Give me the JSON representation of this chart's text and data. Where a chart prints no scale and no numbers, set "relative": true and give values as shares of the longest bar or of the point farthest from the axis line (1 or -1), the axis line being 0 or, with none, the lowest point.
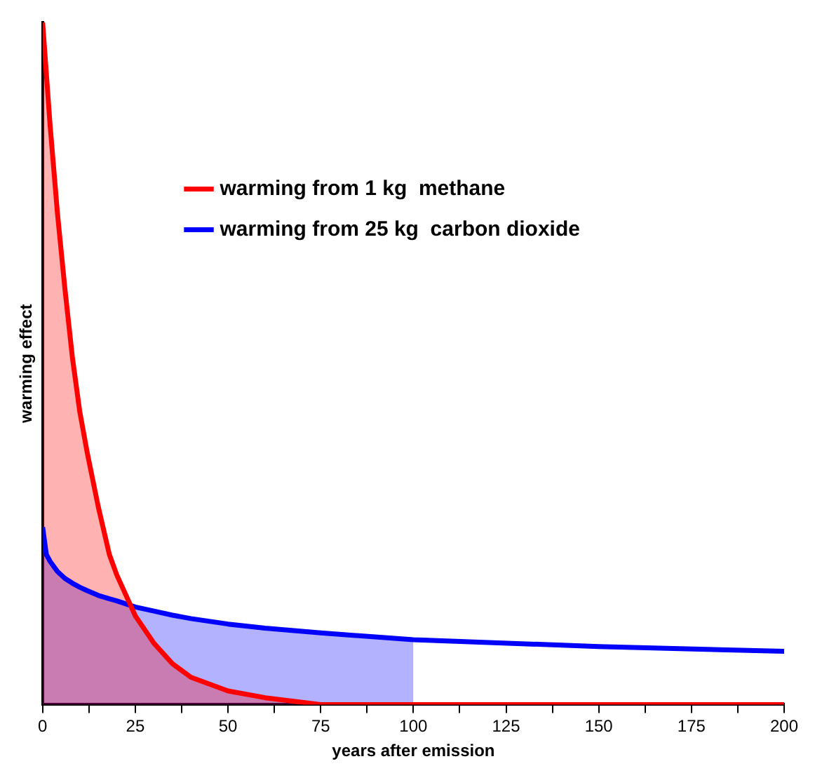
{
  "chart_data": {
    "type": "line",
    "relative": true,
    "xlabel": "years after emission",
    "ylabel": "warming effect",
    "xlim": [
      0,
      200
    ],
    "xticks": [
      0,
      {
        "value": 12.5,
        "label": null
      },
      25,
      {
        "value": 37.5,
        "label": null
      },
      50,
      {
        "value": 62.5,
        "label": null
      },
      75,
      {
        "value": 87.5,
        "label": null
      },
      100,
      {
        "value": 112.5,
        "label": null
      },
      125,
      {
        "value": 137.5,
        "label": null
      },
      150,
      {
        "value": 162.5,
        "label": null
      },
      175,
      {
        "value": 187.5,
        "label": null
      },
      200
    ],
    "legend": "top right",
    "marker": "none",
    "line_style": "solid",
    "grid": false,
    "series": [
      {
        "type": "area",
        "color": "#ff0000",
        "x": [
          0,
          2,
          4,
          6,
          8,
          10,
          12,
          15,
          18,
          20,
          25,
          30,
          35,
          40,
          50,
          60,
          75,
          100
        ],
        "values": [
          1,
          0.85,
          0.72,
          0.61,
          0.51,
          0.43,
          0.37,
          0.29,
          0.22,
          0.19,
          0.13,
          0.09,
          0.06,
          0.04,
          0.02,
          0.01,
          0,
          0
        ]
      },
      {
        "type": "area",
        "color": "#0000ff",
        "x": [
          0,
          1,
          2,
          4,
          6,
          8,
          10,
          12,
          15,
          18,
          20,
          25,
          30,
          35,
          40,
          50,
          60,
          75,
          100
        ],
        "values": [
          0.26,
          0.22,
          0.21,
          0.195,
          0.185,
          0.178,
          0.172,
          0.167,
          0.16,
          0.155,
          0.152,
          0.143,
          0.137,
          0.131,
          0.126,
          0.118,
          0.112,
          0.105,
          0.095
        ]
      },
      {
        "name": "warming from 1 kg  methane",
        "color": "#ff0000",
        "x": [
          0,
          2,
          4,
          6,
          8,
          10,
          12,
          15,
          18,
          20,
          25,
          30,
          35,
          40,
          50,
          60,
          75,
          100,
          150,
          200
        ],
        "values": [
          1,
          0.85,
          0.72,
          0.61,
          0.51,
          0.43,
          0.37,
          0.29,
          0.22,
          0.19,
          0.13,
          0.09,
          0.06,
          0.04,
          0.02,
          0.01,
          0,
          0,
          0,
          0
        ]
      },
      {
        "name": "warming from 25 kg  carbon dioxide",
        "color": "#0000ff",
        "x": [
          0,
          1,
          2,
          4,
          6,
          8,
          10,
          12,
          15,
          18,
          20,
          25,
          30,
          35,
          40,
          50,
          60,
          75,
          100,
          150,
          200
        ],
        "values": [
          0.26,
          0.22,
          0.21,
          0.195,
          0.185,
          0.178,
          0.172,
          0.167,
          0.16,
          0.155,
          0.152,
          0.143,
          0.137,
          0.131,
          0.126,
          0.118,
          0.112,
          0.105,
          0.095,
          0.085,
          0.078
        ]
      }
    ]
  }
}
